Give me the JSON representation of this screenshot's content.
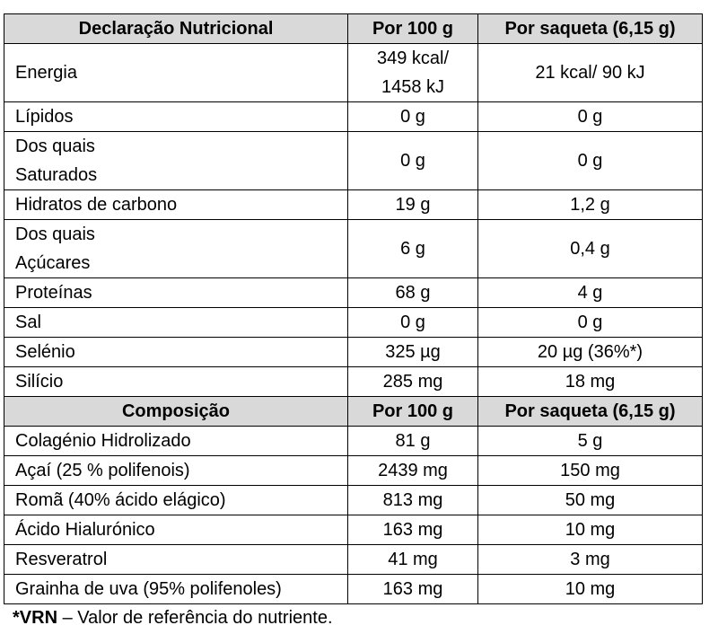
{
  "nutrition": {
    "headers": [
      "Declaração Nutricional",
      "Por 100 g",
      "Por saqueta (6,15 g)"
    ],
    "rows": [
      {
        "label": "Energia",
        "label2": "",
        "per100": "349 kcal/",
        "per100b": "1458 kJ",
        "sachet": "21 kcal/ 90 kJ"
      },
      {
        "label": "Lípidos",
        "per100": "0 g",
        "sachet": "0 g"
      },
      {
        "label": "Dos quais",
        "label2": "Saturados",
        "per100": "0 g",
        "sachet": "0 g"
      },
      {
        "label": "Hidratos de carbono",
        "per100": "19 g",
        "sachet": "1,2 g"
      },
      {
        "label": "Dos quais",
        "label2": "Açúcares",
        "per100": "6 g",
        "sachet": "0,4 g"
      },
      {
        "label": "Proteínas",
        "per100": "68 g",
        "sachet": "4 g"
      },
      {
        "label": "Sal",
        "per100": "0 g",
        "sachet": "0 g"
      },
      {
        "label": "Selénio",
        "per100": "325 µg",
        "sachet": "20 µg (36%*)"
      },
      {
        "label": "Silício",
        "per100": "285 mg",
        "sachet": "18 mg"
      }
    ]
  },
  "composition": {
    "headers": [
      "Composição",
      "Por 100 g",
      "Por saqueta (6,15 g)"
    ],
    "rows": [
      {
        "label": "Colagénio Hidrolizado",
        "per100": "81 g",
        "sachet": "5 g"
      },
      {
        "label": "Açaí (25 % polifenois)",
        "per100": "2439 mg",
        "sachet": "150 mg"
      },
      {
        "label": "Romã (40% ácido elágico)",
        "per100": "813 mg",
        "sachet": "50 mg"
      },
      {
        "label": "Ácido Hialurónico",
        "per100": "163 mg",
        "sachet": "10 mg"
      },
      {
        "label": "Resveratrol",
        "per100": "41 mg",
        "sachet": "3 mg"
      },
      {
        "label": "Grainha de uva (95% polifenoles)",
        "per100": "163 mg",
        "sachet": "10 mg"
      }
    ]
  },
  "footnote": {
    "bold": "*VRN",
    "text": " – Valor de referência do nutriente."
  }
}
